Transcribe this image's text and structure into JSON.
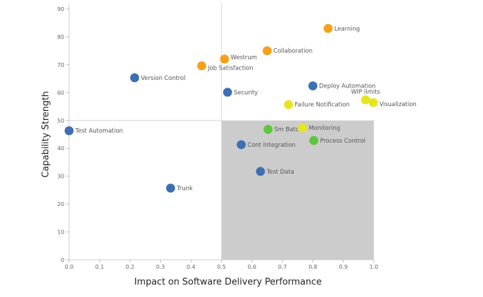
{
  "chart_data": {
    "type": "scatter",
    "title": "",
    "xlabel": "Impact on Software Delivery Performance",
    "ylabel": "Capability Strength",
    "xlim": [
      0,
      1.0
    ],
    "ylim": [
      0,
      90
    ],
    "xticks": [
      "0.0",
      "0.1",
      "0.2",
      "0.3",
      "0.4",
      "0.5",
      "0.6",
      "0.7",
      "0.8",
      "0.9",
      "1.0"
    ],
    "yticks": [
      "0",
      "10",
      "20",
      "30",
      "40",
      "50",
      "60",
      "70",
      "80",
      "90"
    ],
    "quadrant": {
      "x_split": 0.5,
      "y_split": 50,
      "shaded": "x 0.5-1.0, y 0-50",
      "shade_color": "#cccccc"
    },
    "colors": {
      "blue": "#3e6fb5",
      "orange": "#f8a01c",
      "yellow": "#e6e61e",
      "green": "#5cc63c"
    },
    "points": [
      {
        "label": "Learning",
        "x": 0.85,
        "y": 83,
        "color": "orange"
      },
      {
        "label": "Collaboration",
        "x": 0.65,
        "y": 75,
        "color": "orange"
      },
      {
        "label": "Westrum",
        "x": 0.51,
        "y": 72,
        "color": "orange"
      },
      {
        "label": "Job Satisfaction",
        "x": 0.435,
        "y": 69.6,
        "color": "orange"
      },
      {
        "label": "Version Control",
        "x": 0.215,
        "y": 65.3,
        "color": "blue"
      },
      {
        "label": "Security",
        "x": 0.52,
        "y": 60.1,
        "color": "blue"
      },
      {
        "label": "Deploy Automation",
        "x": 0.8,
        "y": 62.4,
        "color": "blue"
      },
      {
        "label": "Failure Notification",
        "x": 0.72,
        "y": 55.7,
        "color": "yellow"
      },
      {
        "label": "WIP limits",
        "x": 0.973,
        "y": 57.4,
        "color": "yellow"
      },
      {
        "label": "Visualization",
        "x": 0.998,
        "y": 56.4,
        "color": "yellow"
      },
      {
        "label": "Test Automation",
        "x": 0.0,
        "y": 46.3,
        "color": "blue"
      },
      {
        "label": "Sm Batch",
        "x": 0.653,
        "y": 46.8,
        "color": "green"
      },
      {
        "label": "Monitoring",
        "x": 0.766,
        "y": 47.3,
        "color": "yellow"
      },
      {
        "label": "Process Control",
        "x": 0.803,
        "y": 42.8,
        "color": "green"
      },
      {
        "label": "Cont Integration",
        "x": 0.565,
        "y": 41.3,
        "color": "blue"
      },
      {
        "label": "Test Data",
        "x": 0.628,
        "y": 31.7,
        "color": "blue"
      },
      {
        "label": "Trunk",
        "x": 0.333,
        "y": 25.7,
        "color": "blue"
      }
    ]
  }
}
